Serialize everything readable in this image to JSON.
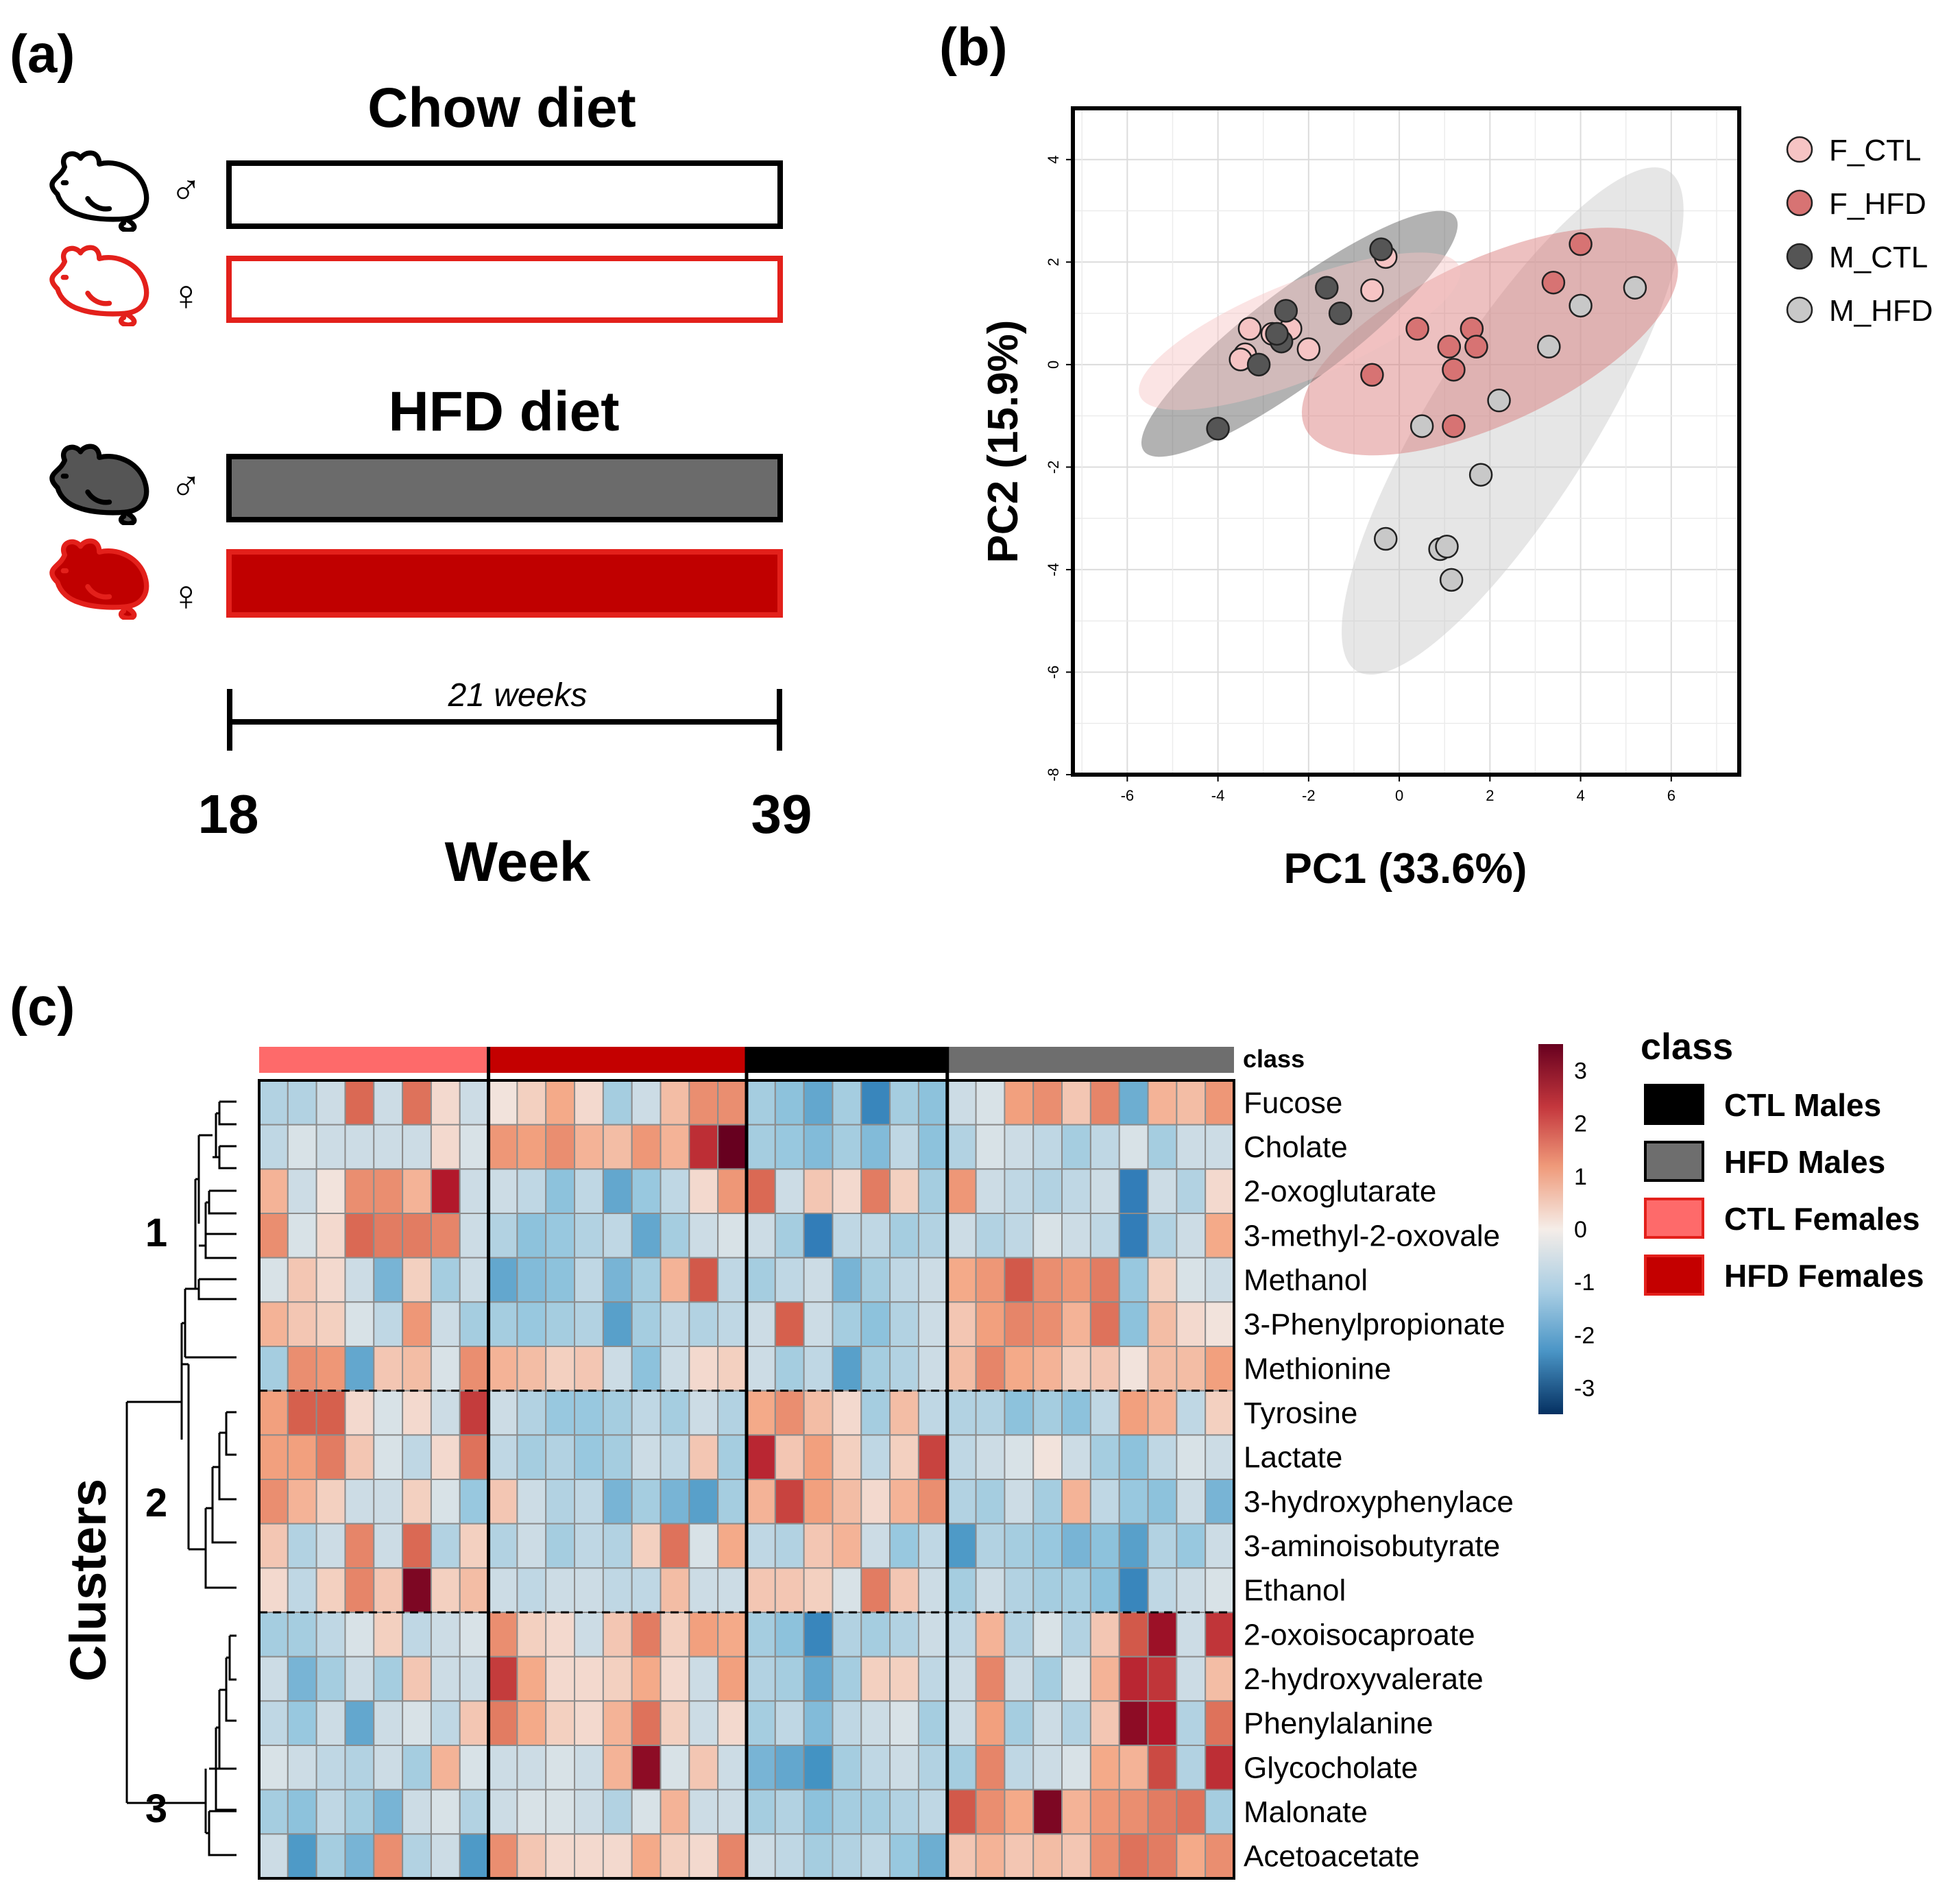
{
  "panel_a": {
    "label": "(a)",
    "chow_title": "Chow diet",
    "hfd_title": "HFD diet",
    "male_symbol": "♂",
    "female_symbol": "♀",
    "duration_label": "21 weeks",
    "start_week": "18",
    "end_week": "39",
    "axis_label": "Week",
    "colors": {
      "male_hfd": "#6b6b6b",
      "female_hfd": "#c00000",
      "female_outline": "#e3201b",
      "black": "#000000"
    }
  },
  "panel_b": {
    "label": "(b)"
  },
  "panel_c": {
    "label": "(c)",
    "class_track_label": "class",
    "clusters_title": "Clusters",
    "cluster_numbers": [
      "1",
      "2",
      "3"
    ],
    "legend_title": "class",
    "legend_items": [
      {
        "label": "CTL Males",
        "color": "#000000"
      },
      {
        "label": "HFD Males",
        "color": "#6e6e6e"
      },
      {
        "label": "CTL Females",
        "color": "#fe6a6a"
      },
      {
        "label": "HFD Females",
        "color": "#c40000"
      }
    ],
    "colorbar_ticks": [
      "3",
      "2",
      "1",
      "0",
      "-1",
      "-2",
      "-3"
    ]
  },
  "chart_data": [
    {
      "type": "scatter",
      "title": "",
      "xlabel": "PC1 (33.6%)",
      "ylabel": "PC2 (15.9%)",
      "xlim": [
        -7.2,
        7.5
      ],
      "ylim": [
        -8,
        5
      ],
      "xticks": [
        "-6",
        "-4",
        "-2",
        "0",
        "2",
        "4",
        "6"
      ],
      "yticks": [
        "4",
        "2",
        "0",
        "-2",
        "-4",
        "-6",
        "-8"
      ],
      "grid": true,
      "legend_position": "right",
      "series": [
        {
          "name": "F_CTL",
          "color": "#f6c4c4",
          "x": [
            -3.3,
            -3.4,
            -3.5,
            -2.8,
            -2.4,
            -2.0,
            -0.6,
            -0.3
          ],
          "y": [
            0.7,
            0.2,
            0.1,
            0.6,
            0.7,
            0.3,
            1.45,
            2.1
          ],
          "ellipse": {
            "cx": -2.2,
            "cy": 0.65,
            "rx": 3.8,
            "ry": 0.95,
            "angle": 22
          }
        },
        {
          "name": "F_HFD",
          "color": "#d77373",
          "x": [
            -0.6,
            0.4,
            1.1,
            1.2,
            1.6,
            1.7,
            1.2,
            3.4,
            4.0
          ],
          "y": [
            -0.2,
            0.7,
            0.35,
            -0.1,
            0.7,
            0.35,
            -1.2,
            1.6,
            2.35
          ],
          "ellipse": {
            "cx": 2.0,
            "cy": 0.45,
            "rx": 4.5,
            "ry": 1.6,
            "angle": 25
          }
        },
        {
          "name": "M_CTL",
          "color": "#555555",
          "x": [
            -4.0,
            -3.1,
            -2.6,
            -2.7,
            -2.5,
            -1.6,
            -1.3,
            -0.4
          ],
          "y": [
            -1.25,
            0.0,
            0.45,
            0.6,
            1.05,
            1.5,
            1.0,
            2.25
          ],
          "ellipse": {
            "cx": -2.2,
            "cy": 0.6,
            "rx": 4.3,
            "ry": 0.9,
            "angle": 37
          }
        },
        {
          "name": "M_HFD",
          "color": "#c8c8c8",
          "x": [
            5.2,
            4.0,
            3.3,
            2.2,
            0.5,
            1.8,
            -0.3,
            0.9,
            1.05,
            1.15
          ],
          "y": [
            1.5,
            1.15,
            0.35,
            -0.7,
            -1.2,
            -2.15,
            -3.4,
            -3.6,
            -3.55,
            -4.2
          ],
          "ellipse": {
            "cx": 2.5,
            "cy": -1.1,
            "rx": 6.5,
            "ry": 1.6,
            "angle": 58
          }
        }
      ]
    },
    {
      "type": "heatmap",
      "title": "",
      "rows": [
        "Fucose",
        "Cholate",
        "2-oxoglutarate",
        "3-methyl-2-oxovale",
        "Methanol",
        "3-Phenylpropionate",
        "Methionine",
        "Tyrosine",
        "Lactate",
        "3-hydroxyphenylace",
        "3-aminoisobutyrate",
        "Ethanol",
        "2-oxoisocaproate",
        "2-hydroxyvalerate",
        "Phenylalanine",
        "Glycocholate",
        "Malonate",
        "Acetoacetate"
      ],
      "column_groups": [
        {
          "name": "CTL Females",
          "count": 8
        },
        {
          "name": "HFD Females",
          "count": 9
        },
        {
          "name": "CTL Males",
          "count": 7
        },
        {
          "name": "HFD Males",
          "count": 10
        }
      ],
      "row_clusters": [
        {
          "name": "1",
          "rows": [
            0,
            6
          ]
        },
        {
          "name": "2",
          "rows": [
            7,
            11
          ]
        },
        {
          "name": "3",
          "rows": [
            12,
            17
          ]
        }
      ],
      "value_range": [
        -3.5,
        3.5
      ],
      "values": [
        [
          -0.5,
          -0.5,
          -0.3,
          1.4,
          -0.3,
          1.3,
          0.2,
          -0.3,
          0.1,
          0.3,
          0.7,
          0.2,
          -0.6,
          -0.3,
          0.5,
          1.0,
          1.0,
          -0.6,
          -0.8,
          -1.2,
          -0.6,
          -1.8,
          -0.6,
          -0.8,
          -0.3,
          -0.2,
          0.8,
          1.0,
          0.4,
          1.1,
          -1.1,
          0.6,
          0.5,
          0.9
        ],
        [
          -0.4,
          -0.2,
          -0.3,
          -0.3,
          -0.3,
          -0.3,
          0.2,
          -0.2,
          0.9,
          0.8,
          1.0,
          0.6,
          0.5,
          0.9,
          0.6,
          2.2,
          3.5,
          -0.6,
          -0.7,
          -0.9,
          -0.6,
          -0.9,
          -0.4,
          -0.8,
          -0.5,
          -0.2,
          -0.3,
          -0.4,
          -0.6,
          -0.4,
          -0.2,
          -0.6,
          -0.3,
          -0.3
        ],
        [
          0.6,
          -0.3,
          0.1,
          1.0,
          1.0,
          0.6,
          2.5,
          -0.3,
          -0.3,
          -0.4,
          -0.8,
          -0.4,
          -1.2,
          -0.7,
          -0.4,
          0.2,
          0.9,
          1.4,
          -0.3,
          0.4,
          0.2,
          1.2,
          0.3,
          -0.6,
          0.9,
          -0.3,
          -0.4,
          -0.5,
          -0.4,
          -0.3,
          -2.0,
          -0.3,
          -0.5,
          0.2
        ],
        [
          1.0,
          -0.2,
          0.2,
          1.4,
          1.2,
          1.2,
          1.1,
          -0.3,
          -0.5,
          -0.8,
          -0.7,
          -0.5,
          -0.4,
          -1.2,
          -0.6,
          -0.3,
          -0.2,
          -0.3,
          -0.6,
          -2.0,
          -0.4,
          -0.4,
          -0.6,
          -0.5,
          -0.3,
          -0.5,
          -0.4,
          -0.2,
          -0.3,
          -0.4,
          -2.0,
          -0.5,
          -0.3,
          0.7
        ],
        [
          -0.2,
          0.4,
          0.2,
          -0.3,
          -1.0,
          0.3,
          -0.6,
          -0.3,
          -1.2,
          -0.9,
          -0.8,
          -0.4,
          -1.0,
          -0.6,
          0.6,
          1.6,
          -0.4,
          -0.6,
          -0.4,
          -0.3,
          -1.0,
          -0.6,
          -0.4,
          -0.3,
          0.7,
          0.9,
          1.6,
          1.0,
          0.9,
          1.2,
          -0.7,
          0.3,
          -0.2,
          -0.3
        ],
        [
          0.6,
          0.4,
          0.3,
          -0.2,
          -0.4,
          0.9,
          -0.3,
          -0.6,
          -0.6,
          -0.7,
          -0.6,
          -0.5,
          -1.3,
          -0.6,
          -0.4,
          -0.5,
          -0.4,
          -0.3,
          1.5,
          -0.3,
          -0.6,
          -0.8,
          -0.5,
          -0.3,
          0.4,
          0.8,
          1.1,
          1.0,
          0.6,
          1.3,
          -0.8,
          0.5,
          0.2,
          0.1
        ],
        [
          -0.6,
          1.0,
          0.9,
          -1.2,
          0.4,
          0.5,
          -0.2,
          1.0,
          0.6,
          0.5,
          0.3,
          0.4,
          -0.3,
          -0.8,
          -0.3,
          0.2,
          0.3,
          -0.3,
          -0.6,
          -0.4,
          -1.3,
          -0.6,
          -0.5,
          -0.3,
          0.5,
          1.1,
          0.7,
          0.6,
          0.3,
          0.4,
          0.1,
          0.5,
          0.5,
          0.8
        ],
        [
          0.8,
          1.5,
          1.5,
          0.2,
          -0.2,
          0.2,
          -0.3,
          2.0,
          -0.3,
          -0.5,
          -0.7,
          -0.7,
          -0.6,
          -0.4,
          -0.6,
          -0.3,
          -0.5,
          0.7,
          1.0,
          0.5,
          0.2,
          -0.6,
          0.5,
          -0.4,
          -0.5,
          -0.5,
          -0.8,
          -0.6,
          -0.8,
          -0.4,
          0.8,
          0.6,
          -0.4,
          0.3
        ],
        [
          0.8,
          0.8,
          1.2,
          0.4,
          -0.2,
          -0.4,
          0.2,
          1.3,
          -0.4,
          -0.6,
          -0.5,
          -0.7,
          -0.6,
          -0.3,
          -0.4,
          0.4,
          -0.6,
          2.3,
          0.4,
          0.8,
          0.3,
          -0.4,
          0.3,
          1.9,
          -0.4,
          -0.3,
          -0.2,
          0.1,
          -0.3,
          -0.6,
          -0.8,
          -0.4,
          -0.2,
          -0.3
        ],
        [
          1.0,
          0.6,
          0.3,
          -0.3,
          -0.3,
          0.3,
          -0.2,
          -0.7,
          0.4,
          -0.3,
          -0.5,
          -0.4,
          -1.0,
          -0.6,
          -1.0,
          -1.3,
          -0.6,
          0.6,
          1.9,
          0.8,
          0.5,
          0.2,
          0.6,
          1.0,
          -0.5,
          -0.6,
          -0.3,
          -0.6,
          0.6,
          -0.4,
          -0.7,
          -0.8,
          -0.3,
          -1.0
        ],
        [
          0.4,
          -0.5,
          -0.3,
          1.1,
          -0.3,
          1.4,
          -0.5,
          0.3,
          -0.5,
          -0.3,
          -0.6,
          -0.4,
          -0.5,
          0.3,
          1.3,
          -0.2,
          0.7,
          -0.4,
          -0.5,
          0.4,
          0.6,
          -0.3,
          -0.7,
          -0.4,
          -1.4,
          -0.5,
          -0.6,
          -0.7,
          -1.0,
          -0.8,
          -1.3,
          -0.5,
          -0.7,
          -0.3
        ],
        [
          0.2,
          -0.4,
          0.3,
          1.1,
          0.4,
          3.2,
          0.3,
          0.5,
          -0.3,
          -0.4,
          -0.3,
          -0.3,
          -0.4,
          -0.4,
          0.5,
          -0.3,
          -0.3,
          0.4,
          0.4,
          0.3,
          -0.2,
          1.2,
          0.4,
          -0.3,
          -0.6,
          -0.3,
          -0.5,
          -0.6,
          -0.6,
          -0.8,
          -1.8,
          -0.4,
          -0.3,
          -0.2
        ],
        [
          -0.6,
          -0.6,
          -0.4,
          -0.2,
          0.3,
          -0.4,
          -0.3,
          -0.2,
          1.0,
          0.3,
          0.2,
          -0.3,
          0.4,
          1.2,
          0.3,
          0.8,
          0.7,
          -0.6,
          -0.8,
          -1.8,
          -0.5,
          -0.6,
          -0.5,
          -0.3,
          -0.4,
          0.6,
          -0.5,
          -0.2,
          -0.5,
          0.4,
          1.6,
          2.8,
          -0.3,
          2.1
        ],
        [
          -0.3,
          -1.0,
          -0.6,
          -0.3,
          -0.6,
          0.4,
          -0.3,
          -0.3,
          2.0,
          0.7,
          0.2,
          0.2,
          0.3,
          0.7,
          0.2,
          -0.3,
          0.8,
          -0.5,
          -0.6,
          -1.2,
          -0.6,
          0.3,
          0.3,
          -0.4,
          -0.3,
          1.1,
          -0.3,
          -0.6,
          -0.2,
          0.6,
          2.3,
          2.1,
          -0.3,
          0.5
        ],
        [
          -0.4,
          -0.7,
          -0.3,
          -1.2,
          -0.3,
          -0.2,
          -0.4,
          0.4,
          1.2,
          0.7,
          0.3,
          0.2,
          0.6,
          1.3,
          0.3,
          -0.3,
          0.2,
          -0.6,
          -0.4,
          -0.9,
          -0.4,
          -0.3,
          -0.2,
          -0.6,
          -0.3,
          0.8,
          -0.6,
          -0.3,
          -0.5,
          0.4,
          3.0,
          2.5,
          -0.5,
          1.3
        ],
        [
          -0.2,
          -0.3,
          -0.4,
          -0.5,
          -0.3,
          -0.6,
          0.6,
          -0.2,
          -0.3,
          -0.3,
          -0.2,
          -0.3,
          0.6,
          3.0,
          -0.2,
          0.4,
          -0.3,
          -1.0,
          -1.2,
          -1.5,
          -0.6,
          -0.4,
          -0.3,
          -0.5,
          -0.6,
          1.1,
          -0.4,
          -0.3,
          -0.2,
          0.7,
          0.6,
          1.8,
          -0.5,
          2.2
        ],
        [
          -0.6,
          -0.8,
          -0.4,
          -0.6,
          -1.0,
          -0.3,
          -0.2,
          -0.5,
          -0.3,
          -0.2,
          -0.2,
          -0.3,
          -0.5,
          -0.2,
          0.6,
          -0.3,
          -0.3,
          -0.6,
          -0.5,
          -0.8,
          -0.6,
          -0.6,
          -0.5,
          -0.4,
          1.6,
          1.0,
          0.7,
          3.2,
          0.6,
          0.9,
          1.0,
          1.2,
          1.3,
          -0.6
        ],
        [
          -0.3,
          -1.4,
          -0.6,
          -1.0,
          1.0,
          -0.5,
          -0.3,
          -1.4,
          1.0,
          0.4,
          0.2,
          0.2,
          0.2,
          0.7,
          0.3,
          0.2,
          1.1,
          -0.3,
          -0.4,
          -0.6,
          -0.5,
          -0.4,
          -0.7,
          -1.1,
          0.4,
          0.6,
          0.4,
          0.5,
          0.4,
          1.0,
          1.3,
          1.2,
          0.7,
          1.0
        ]
      ]
    }
  ]
}
